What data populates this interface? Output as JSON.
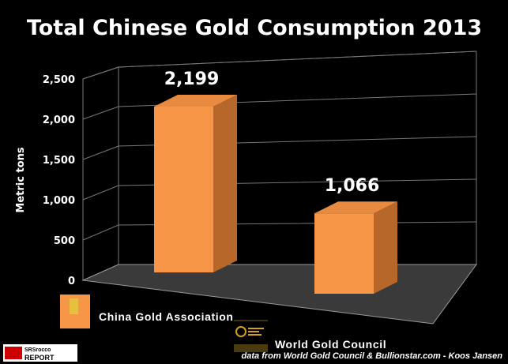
{
  "chart_data": {
    "type": "bar",
    "title": "Total Chinese Gold Consumption 2013",
    "ylabel": "Metric tons",
    "xlabel": "",
    "ylim": [
      0,
      2500
    ],
    "yticks": [
      0,
      500,
      1000,
      1500,
      2000,
      2500
    ],
    "ytick_labels": [
      "0",
      "500",
      "1,000",
      "1,500",
      "2,000",
      "2,500"
    ],
    "categories": [
      "China Gold Association",
      "World Gold Council"
    ],
    "values": [
      2199,
      1066
    ],
    "data_labels": [
      "2,199",
      "1,066"
    ],
    "grid": true,
    "bar_color": "#f79646",
    "source": "data from World Gold Council & Bullionstar.com - Koos Jansen"
  },
  "branding": {
    "logo_text_1": "SRSrocco",
    "logo_text_2": "REPORT"
  }
}
